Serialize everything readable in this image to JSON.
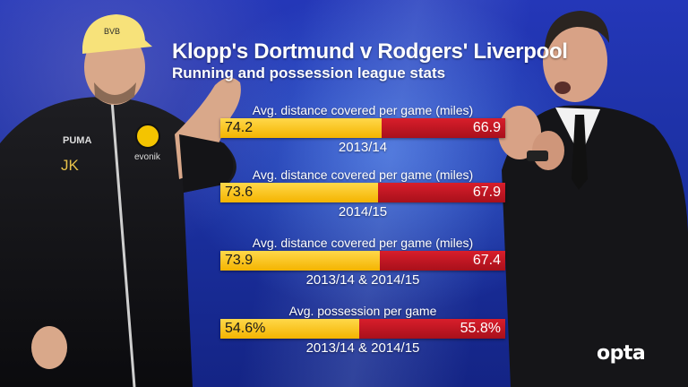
{
  "chart_data": {
    "type": "bar",
    "orientation": "horizontal-stacked",
    "title": "Klopp's Dortmund v Rodgers' Liverpool",
    "subtitle": "Running and possession league stats",
    "colors": {
      "dortmund": "#f4b400",
      "liverpool": "#c8161f"
    },
    "rows": [
      {
        "metric": "Avg. distance covered per game (miles)",
        "season": "2013/14",
        "dortmund": 74.2,
        "liverpool": 66.9,
        "dortmund_label": "74.2",
        "liverpool_label": "66.9"
      },
      {
        "metric": "Avg. distance covered per game (miles)",
        "season": "2014/15",
        "dortmund": 73.6,
        "liverpool": 67.9,
        "dortmund_label": "73.6",
        "liverpool_label": "67.9"
      },
      {
        "metric": "Avg. distance covered per game (miles)",
        "season": "2013/14 & 2014/15",
        "dortmund": 73.9,
        "liverpool": 67.4,
        "dortmund_label": "73.9",
        "liverpool_label": "67.4"
      },
      {
        "metric": "Avg. possession per game",
        "season": "2013/14 & 2014/15",
        "dortmund": 54.6,
        "liverpool": 55.8,
        "dortmund_label": "54.6%",
        "liverpool_label": "55.8%"
      }
    ]
  },
  "branding": {
    "logo_text": "opta"
  },
  "figures": {
    "left": {
      "cap_text": "BVB",
      "shirt_initials": "JK",
      "shirt_brand": "PUMA",
      "shirt_sponsor": "evonik"
    }
  }
}
